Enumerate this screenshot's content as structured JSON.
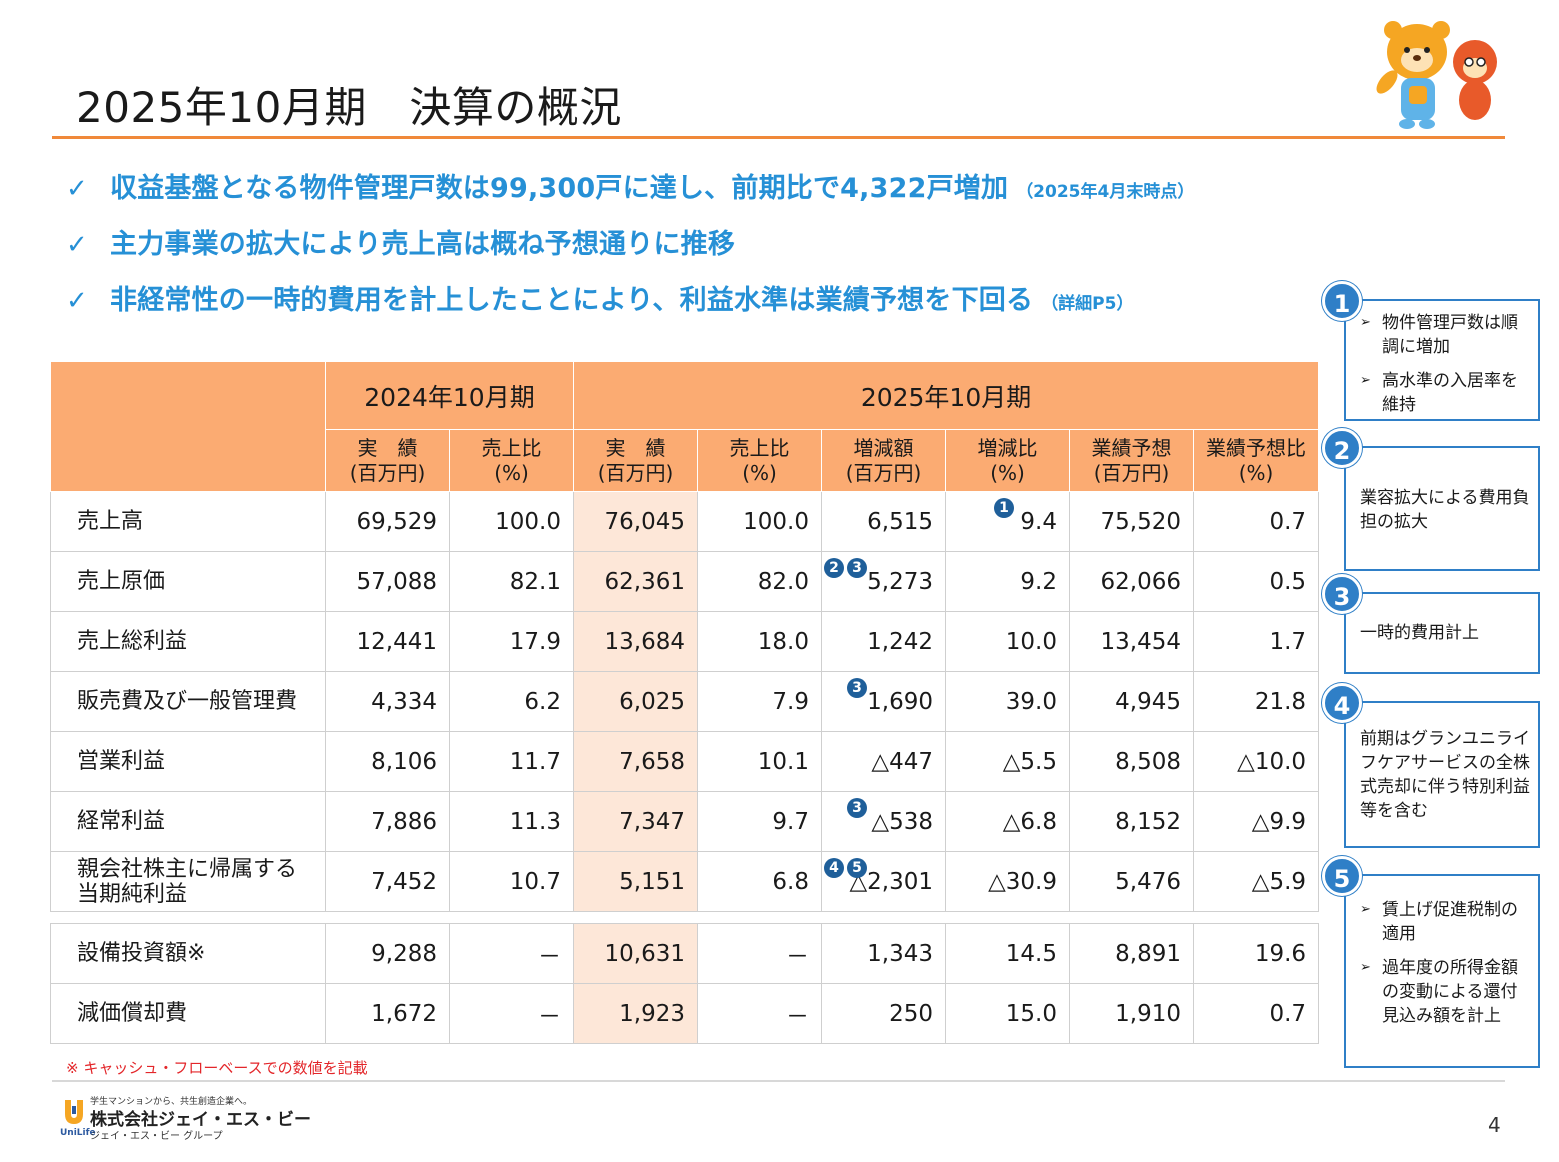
{
  "title": "2025年10月期　決算の概況",
  "bullets": [
    {
      "text": "収益基盤となる物件管理戸数は99,300戸に達し、前期比で4,322戸増加",
      "note": "（2025年4月末時点）"
    },
    {
      "text": "主力事業の拡大により売上高は概ね予想通りに推移",
      "note": ""
    },
    {
      "text": "非経常性の一時的費用を計上したことにより、利益水準は業績予想を下回る",
      "note": "（詳細P5）"
    }
  ],
  "table": {
    "period_prev": "2024年10月期",
    "period_curr": "2025年10月期",
    "columns": [
      [
        "実　績",
        "(百万円)"
      ],
      [
        "売上比",
        "(%)"
      ],
      [
        "実　績",
        "(百万円)"
      ],
      [
        "売上比",
        "(%)"
      ],
      [
        "増減額",
        "(百万円)"
      ],
      [
        "増減比",
        "(%)"
      ],
      [
        "業績予想",
        "(百万円)"
      ],
      [
        "業績予想比",
        "(%)"
      ]
    ],
    "rows": [
      {
        "label": [
          "売上高"
        ],
        "values": [
          "69,529",
          "100.0",
          "76,045",
          "100.0",
          "6,515",
          "9.4",
          "75,520",
          "0.7"
        ]
      },
      {
        "label": [
          "売上原価"
        ],
        "values": [
          "57,088",
          "82.1",
          "62,361",
          "82.0",
          "5,273",
          "9.2",
          "62,066",
          "0.5"
        ]
      },
      {
        "label": [
          "売上総利益"
        ],
        "values": [
          "12,441",
          "17.9",
          "13,684",
          "18.0",
          "1,242",
          "10.0",
          "13,454",
          "1.7"
        ]
      },
      {
        "label": [
          "販売費及び一般管理費"
        ],
        "values": [
          "4,334",
          "6.2",
          "6,025",
          "7.9",
          "1,690",
          "39.0",
          "4,945",
          "21.8"
        ]
      },
      {
        "label": [
          "営業利益"
        ],
        "values": [
          "8,106",
          "11.7",
          "7,658",
          "10.1",
          "△447",
          "△5.5",
          "8,508",
          "△10.0"
        ]
      },
      {
        "label": [
          "経常利益"
        ],
        "values": [
          "7,886",
          "11.3",
          "7,347",
          "9.7",
          "△538",
          "△6.8",
          "8,152",
          "△9.9"
        ]
      },
      {
        "label": [
          "親会社株主に帰属する",
          "当期純利益"
        ],
        "values": [
          "7,452",
          "10.7",
          "5,151",
          "6.8",
          "△2,301",
          "△30.9",
          "5,476",
          "△5.9"
        ]
      }
    ],
    "extra_rows": [
      {
        "label": [
          "設備投資額※"
        ],
        "values": [
          "9,288",
          "－",
          "10,631",
          "－",
          "1,343",
          "14.5",
          "8,891",
          "19.6"
        ]
      },
      {
        "label": [
          "減価償却費"
        ],
        "values": [
          "1,672",
          "－",
          "1,923",
          "－",
          "250",
          "15.0",
          "1,910",
          "0.7"
        ]
      }
    ],
    "badges": {
      "b1": "1",
      "b2": "2",
      "b3a": "3",
      "b3b": "3",
      "b3c": "3",
      "b4": "4",
      "b5": "5"
    }
  },
  "footnote": "※ キャッシュ・フローベースでの数値を記載",
  "side_notes": [
    {
      "num": "1",
      "items": [
        "物件管理戸数は順調に増加",
        "高水準の入居率を維持"
      ]
    },
    {
      "num": "2",
      "text": "業容拡大による費用負担の拡大"
    },
    {
      "num": "3",
      "text": "一時的費用計上"
    },
    {
      "num": "4",
      "text": "前期はグランユニライフケアサービスの全株式売却に伴う特別利益等を含む"
    },
    {
      "num": "5",
      "items": [
        "賃上げ促進税制の適用",
        "過年度の所得金額の変動による還付見込み額を計上"
      ]
    }
  ],
  "logo": {
    "tagline": "学生マンションから、共生創造企業へ。",
    "company": "株式会社ジェイ・エス・ビー",
    "group": "ジェイ・エス・ビー グループ",
    "brand": "UniLife"
  },
  "page_number": "4",
  "colors": {
    "accent": "#f0893a",
    "header": "#fbab72",
    "highlight": "#fde7d8",
    "bullet": "#2690d6",
    "badge": "#2f7fc7"
  }
}
